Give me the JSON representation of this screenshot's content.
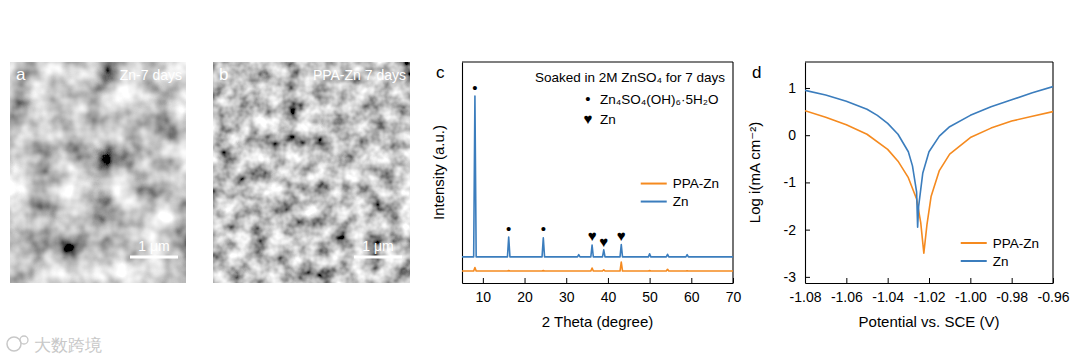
{
  "images": [
    {
      "panel_label": "a",
      "caption": "Zn-7 days",
      "scale_bar": "1 μm"
    },
    {
      "panel_label": "b",
      "caption": "PPA-Zn 7 days",
      "scale_bar": "1 μm"
    }
  ],
  "chart_data": [
    {
      "type": "line",
      "panel_label": "c",
      "title": "Soaked in 2M ZnSO₄ for 7 days",
      "x_label": "2 Theta (degree)",
      "y_label": "Intensity (a.u.)",
      "xlim": [
        5,
        70
      ],
      "xticks": [
        10,
        20,
        30,
        40,
        50,
        60,
        70
      ],
      "ylim": [
        0,
        100
      ],
      "tick_labels": "x",
      "legend": "right",
      "x": [
        5,
        7.8,
        8.1,
        8.4,
        15.9,
        16.2,
        16.5,
        24.2,
        24.5,
        24.8,
        32.7,
        33.0,
        33.3,
        35.9,
        36.2,
        36.5,
        38.7,
        39.0,
        39.3,
        42.9,
        43.2,
        43.5,
        49.7,
        50.0,
        50.3,
        54.0,
        54.3,
        54.6,
        58.7,
        59.0,
        59.3,
        70
      ],
      "series": [
        {
          "name": "PPA-Zn",
          "color": "#f58a1f",
          "values": [
            5.4,
            5.4,
            7.0,
            5.4,
            5.4,
            5.6,
            5.4,
            5.4,
            5.6,
            5.4,
            5.4,
            5.4,
            5.4,
            5.4,
            6.8,
            5.4,
            5.4,
            6.0,
            5.4,
            5.4,
            9.5,
            5.4,
            5.4,
            5.6,
            5.4,
            5.4,
            6.2,
            5.4,
            5.4,
            5.5,
            5.4,
            5.4
          ]
        },
        {
          "name": "Zn",
          "color": "#3b7dbd",
          "values": [
            11.8,
            11.8,
            84.6,
            11.8,
            11.8,
            20.8,
            11.8,
            11.8,
            20.4,
            11.8,
            11.8,
            12.8,
            11.8,
            11.8,
            17.2,
            11.8,
            11.8,
            15.0,
            11.8,
            11.8,
            17.4,
            11.8,
            11.8,
            13.2,
            11.8,
            11.8,
            13.0,
            11.8,
            11.8,
            12.8,
            11.8,
            11.8
          ]
        }
      ],
      "phase_legend": [
        {
          "symbol": "•",
          "label": "Zn₄SO₄(OH)₆·5H₂O"
        },
        {
          "symbol": "♥",
          "label": "Zn"
        }
      ],
      "annotations": [
        {
          "x": 8.1,
          "y": 88.2,
          "text": "•"
        },
        {
          "x": 16.2,
          "y": 24.4,
          "text": "•"
        },
        {
          "x": 24.5,
          "y": 24.4,
          "text": "•"
        },
        {
          "x": 36.2,
          "y": 21.3,
          "text": "♥"
        },
        {
          "x": 39.0,
          "y": 18.6,
          "text": "♥"
        },
        {
          "x": 43.2,
          "y": 21.3,
          "text": "♥"
        }
      ]
    },
    {
      "type": "line",
      "panel_label": "d",
      "x_label": "Potential vs. SCE (V)",
      "y_label": "Log i(mA cm⁻²)",
      "xlim": [
        -1.08,
        -0.96
      ],
      "xticks": [
        -1.08,
        -1.06,
        -1.04,
        -1.02,
        {
          "value": -1.0,
          "label": "-1.00"
        },
        -0.98,
        -0.96
      ],
      "ylim": [
        -3.13,
        1.55
      ],
      "yticks": [
        -3,
        -2,
        -1,
        0,
        1
      ],
      "legend": "lower right",
      "series": [
        {
          "name": "PPA-Zn",
          "color": "#f58a1f",
          "x": [
            -1.08,
            -1.07,
            -1.06,
            -1.05,
            -1.04,
            -1.035,
            -1.03,
            -1.026,
            -1.024,
            -1.0225,
            -1.021,
            -1.019,
            -1.015,
            -1.01,
            -1.0,
            -0.99,
            -0.98,
            -0.97,
            -0.96
          ],
          "values": [
            0.52,
            0.38,
            0.22,
            0.02,
            -0.3,
            -0.55,
            -0.9,
            -1.35,
            -1.85,
            -2.5,
            -1.9,
            -1.3,
            -0.75,
            -0.4,
            -0.05,
            0.15,
            0.3,
            0.4,
            0.5
          ]
        },
        {
          "name": "Zn",
          "color": "#3b7dbd",
          "x": [
            -1.08,
            -1.07,
            -1.06,
            -1.05,
            -1.045,
            -1.04,
            -1.035,
            -1.03,
            -1.028,
            -1.026,
            -1.0255,
            -1.025,
            -1.023,
            -1.02,
            -1.015,
            -1.01,
            -1.0,
            -0.99,
            -0.98,
            -0.97,
            -0.96
          ],
          "values": [
            0.95,
            0.85,
            0.72,
            0.55,
            0.42,
            0.25,
            0.02,
            -0.35,
            -0.65,
            -1.2,
            -1.95,
            -1.5,
            -0.8,
            -0.35,
            -0.02,
            0.18,
            0.42,
            0.6,
            0.75,
            0.9,
            1.03
          ]
        }
      ]
    }
  ],
  "watermark": "大数跨境"
}
